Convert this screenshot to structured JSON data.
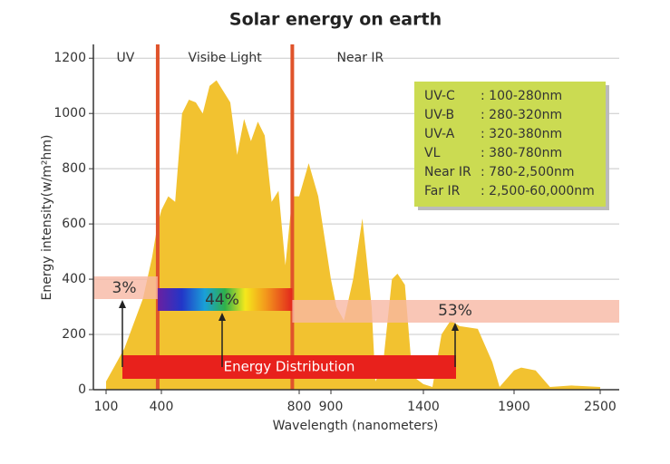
{
  "chart_data": {
    "type": "area",
    "title": "Solar energy on earth",
    "x_label": "Wavelength (nanometers)",
    "y_label": "Energy intensity(w/m²hm)",
    "color": "#f2c230",
    "x": [
      100,
      200,
      300,
      350,
      380,
      400,
      420,
      440,
      460,
      480,
      500,
      520,
      540,
      560,
      580,
      600,
      620,
      640,
      660,
      680,
      700,
      720,
      740,
      760,
      780,
      800,
      830,
      860,
      900,
      930,
      970,
      1020,
      1070,
      1120,
      1140,
      1180,
      1230,
      1260,
      1300,
      1340,
      1400,
      1450,
      1500,
      1550,
      1600,
      1700,
      1780,
      1820,
      1900,
      1950,
      2050,
      2150,
      2300,
      2500
    ],
    "values": [
      30,
      150,
      330,
      480,
      600,
      650,
      700,
      680,
      1000,
      1050,
      1040,
      1000,
      1100,
      1120,
      1080,
      1040,
      850,
      980,
      900,
      970,
      920,
      680,
      720,
      450,
      700,
      700,
      820,
      700,
      400,
      300,
      250,
      400,
      620,
      300,
      30,
      80,
      400,
      420,
      380,
      50,
      20,
      10,
      200,
      250,
      230,
      220,
      100,
      10,
      70,
      80,
      70,
      10,
      15,
      10
    ],
    "xlim": [
      30,
      2640
    ],
    "xticks": [
      100,
      400,
      800,
      900,
      1400,
      1900,
      2500
    ],
    "ylim": [
      0,
      1250
    ],
    "yticks": [
      0,
      200,
      400,
      600,
      800,
      1000,
      1200
    ],
    "grid": true,
    "boundaries": [
      380,
      780
    ],
    "boundary_color": "#e0532b",
    "region_labels": [
      "UV",
      "Visibe Light",
      "Near IR"
    ],
    "shares": [
      3,
      44,
      53
    ],
    "share_labels": [
      "3%",
      "44%",
      "53%"
    ],
    "distribution_label": "Energy Distribution",
    "legend_box": [
      {
        "name": "UV-C",
        "range": ": 100-280nm"
      },
      {
        "name": "UV-B",
        "range": ": 280-320nm"
      },
      {
        "name": "UV-A",
        "range": ": 320-380nm"
      },
      {
        "name": "VL",
        "range": ": 380-780nm"
      },
      {
        "name": "Near IR",
        "range": ": 780-2,500nm"
      },
      {
        "name": "Far IR",
        "range": ": 2,500-60,000nm"
      }
    ]
  }
}
